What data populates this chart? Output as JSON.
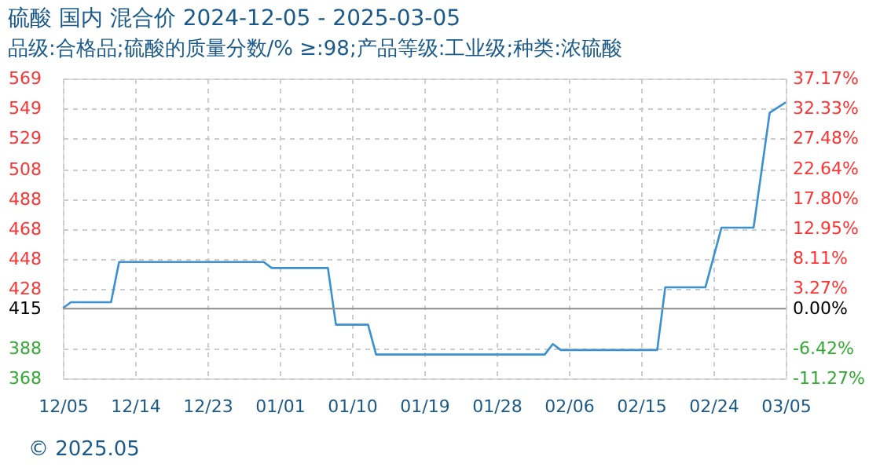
{
  "chart_data": {
    "type": "line",
    "title": "硫酸 国内 混合价 2024-12-05 - 2025-03-05",
    "subtitle": "品级:合格品;硫酸的质量分数/% ≥:98;产品等级:工业级;种类:浓硫酸",
    "annotations": [
      "© 2025.05"
    ],
    "x": [
      "2024-12-05",
      "2024-12-06",
      "2024-12-11",
      "2024-12-12",
      "2024-12-30",
      "2024-12-31",
      "2025-01-07",
      "2025-01-08",
      "2025-01-12",
      "2025-01-13",
      "2025-02-03",
      "2025-02-04",
      "2025-02-05",
      "2025-02-17",
      "2025-02-18",
      "2025-02-23",
      "2025-02-25",
      "2025-03-01",
      "2025-03-03",
      "2025-03-05"
    ],
    "series": [
      {
        "color": "#3a90d0",
        "values": [
          415,
          419,
          419,
          446,
          446,
          442,
          442,
          404,
          404,
          384,
          384,
          391,
          387,
          387,
          429,
          429,
          469,
          469,
          546,
          553
        ]
      }
    ],
    "xlim": [
      "2024-12-05",
      "2025-03-05"
    ],
    "xticks": [
      {
        "value": "2024-12-05",
        "label": "12/05"
      },
      {
        "value": "2024-12-14",
        "label": "12/14"
      },
      {
        "value": "2024-12-23",
        "label": "12/23"
      },
      {
        "value": "2025-01-01",
        "label": "01/01"
      },
      {
        "value": "2025-01-10",
        "label": "01/10"
      },
      {
        "value": "2025-01-19",
        "label": "01/19"
      },
      {
        "value": "2025-01-28",
        "label": "01/28"
      },
      {
        "value": "2025-02-06",
        "label": "02/06"
      },
      {
        "value": "2025-02-15",
        "label": "02/15"
      },
      {
        "value": "2025-02-24",
        "label": "02/24"
      },
      {
        "value": "2025-03-05",
        "label": "03/05"
      }
    ],
    "ylim": [
      368,
      569
    ],
    "yticks": [
      368,
      388,
      415,
      428,
      448,
      468,
      488,
      508,
      529,
      549,
      569
    ],
    "y2lim": [
      -11.27,
      37.17
    ],
    "y2ticks": [
      {
        "value": -11.27,
        "label": "-11.27%"
      },
      {
        "value": -6.42,
        "label": "-6.42%"
      },
      {
        "value": 0,
        "label": "0.00%"
      },
      {
        "value": 3.27,
        "label": "3.27%"
      },
      {
        "value": 8.11,
        "label": "8.11%"
      },
      {
        "value": 12.95,
        "label": "12.95%"
      },
      {
        "value": 17.8,
        "label": "17.80%"
      },
      {
        "value": 22.64,
        "label": "22.64%"
      },
      {
        "value": 27.48,
        "label": "27.48%"
      },
      {
        "value": 32.33,
        "label": "32.33%"
      },
      {
        "value": 37.17,
        "label": "37.17%"
      }
    ],
    "ref_lines": [
      {
        "axis": "y2",
        "value": 0,
        "color": "#999999",
        "line_style": "solid"
      }
    ],
    "grid": true,
    "marker": "none",
    "line_style": "solid"
  }
}
